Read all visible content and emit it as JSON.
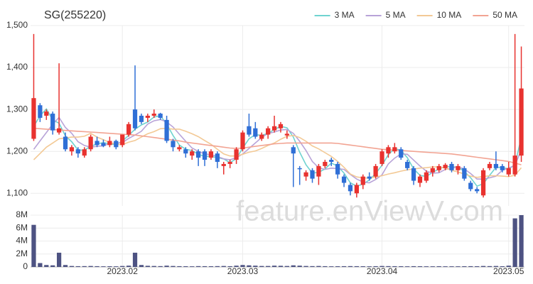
{
  "chart_data": {
    "type": "candlestick",
    "title": "SG(255220)",
    "watermark": "feature.enViewV.com",
    "categories": [
      null,
      null,
      null,
      null,
      null,
      null,
      null,
      null,
      null,
      null,
      null,
      null,
      null,
      null,
      "2023.02",
      null,
      null,
      null,
      null,
      null,
      null,
      null,
      null,
      null,
      null,
      null,
      null,
      null,
      null,
      null,
      null,
      null,
      null,
      "2023.03",
      null,
      null,
      null,
      null,
      null,
      null,
      null,
      null,
      null,
      null,
      null,
      null,
      null,
      null,
      null,
      null,
      null,
      null,
      null,
      null,
      null,
      "2023.04",
      null,
      null,
      null,
      null,
      null,
      null,
      null,
      null,
      null,
      null,
      null,
      null,
      null,
      null,
      null,
      null,
      null,
      null,
      null,
      "2023.05",
      null,
      null
    ],
    "open": [
      1230,
      1310,
      1285,
      1290,
      1245,
      1235,
      1200,
      1205,
      1190,
      1205,
      1225,
      1220,
      1215,
      1225,
      1215,
      1240,
      1300,
      1285,
      1280,
      1285,
      1290,
      1275,
      1225,
      1205,
      1205,
      1190,
      1200,
      1200,
      1185,
      1195,
      1165,
      1170,
      1180,
      1205,
      1260,
      1255,
      1230,
      1240,
      1250,
      1255,
      1238,
      1210,
      1160,
      1140,
      1155,
      1140,
      1165,
      1180,
      1170,
      1140,
      1120,
      1100,
      1120,
      1140,
      1140,
      1170,
      1195,
      1200,
      1205,
      1175,
      1160,
      1125,
      1130,
      1150,
      1155,
      1160,
      1170,
      1155,
      1160,
      1125,
      1110,
      1095,
      1160,
      1170,
      1165,
      1145,
      1145,
      1190
    ],
    "high": [
      1480,
      1315,
      1300,
      1295,
      1410,
      1245,
      1215,
      1210,
      1210,
      1240,
      1235,
      1228,
      1235,
      1228,
      1240,
      1270,
      1405,
      1290,
      1290,
      1300,
      1292,
      1285,
      1230,
      1215,
      1210,
      1205,
      1205,
      1205,
      1205,
      1200,
      1175,
      1180,
      1210,
      1250,
      1290,
      1270,
      1245,
      1260,
      1285,
      1270,
      1250,
      1215,
      1165,
      1155,
      1160,
      1170,
      1180,
      1185,
      1175,
      1145,
      1125,
      1125,
      1145,
      1150,
      1170,
      1205,
      1215,
      1220,
      1210,
      1180,
      1165,
      1145,
      1155,
      1165,
      1170,
      1172,
      1175,
      1170,
      1165,
      1130,
      1115,
      1160,
      1175,
      1200,
      1170,
      1175,
      1480,
      1450
    ],
    "low": [
      1225,
      1270,
      1275,
      1240,
      1240,
      1200,
      1190,
      1185,
      1185,
      1200,
      1210,
      1210,
      1210,
      1205,
      1210,
      1235,
      1250,
      1265,
      1270,
      1280,
      1275,
      1220,
      1200,
      1200,
      1185,
      1180,
      1165,
      1165,
      1180,
      1160,
      1145,
      1160,
      1170,
      1200,
      1235,
      1230,
      1225,
      1230,
      1245,
      1245,
      1230,
      1115,
      1120,
      1130,
      1125,
      1120,
      1160,
      1165,
      1135,
      1115,
      1095,
      1090,
      1110,
      1130,
      1135,
      1165,
      1185,
      1195,
      1180,
      1155,
      1120,
      1115,
      1125,
      1140,
      1150,
      1155,
      1150,
      1145,
      1130,
      1105,
      1100,
      1090,
      1155,
      1155,
      1150,
      1140,
      1140,
      1175
    ],
    "close": [
      1327,
      1280,
      1295,
      1250,
      1255,
      1205,
      1210,
      1195,
      1205,
      1235,
      1215,
      1213,
      1225,
      1210,
      1240,
      1265,
      1255,
      1270,
      1285,
      1290,
      1280,
      1225,
      1210,
      1210,
      1195,
      1200,
      1185,
      1180,
      1200,
      1175,
      1170,
      1175,
      1205,
      1245,
      1240,
      1235,
      1240,
      1255,
      1260,
      1265,
      1242,
      1195,
      1158,
      1150,
      1135,
      1165,
      1175,
      1175,
      1145,
      1125,
      1105,
      1120,
      1140,
      1135,
      1165,
      1200,
      1210,
      1210,
      1185,
      1160,
      1130,
      1140,
      1150,
      1160,
      1165,
      1168,
      1155,
      1165,
      1135,
      1110,
      1105,
      1155,
      1170,
      1160,
      1155,
      1160,
      1190,
      1350
    ],
    "up_color": "#e8322f",
    "down_color": "#2f6fd6",
    "ylim": [
      1070,
      1500
    ],
    "yticks": [
      {
        "value": 1100,
        "label": "1,100"
      },
      {
        "value": 1200,
        "label": "1,200"
      },
      {
        "value": 1300,
        "label": "1,300"
      },
      {
        "value": 1400,
        "label": "1,400"
      },
      {
        "value": 1500,
        "label": "1,500"
      }
    ],
    "grid": true,
    "legend": "top-right",
    "series": [
      {
        "name": "3 MA",
        "color": "#6fd3d0",
        "values": [
          1260,
          1285,
          1301,
          1275,
          1267,
          1237,
          1223,
          1203,
          1203,
          1212,
          1218,
          1221,
          1218,
          1216,
          1225,
          1238,
          1253,
          1263,
          1270,
          1282,
          1285,
          1265,
          1238,
          1215,
          1205,
          1202,
          1193,
          1188,
          1188,
          1185,
          1182,
          1173,
          1183,
          1208,
          1230,
          1240,
          1238,
          1243,
          1252,
          1260,
          1256,
          1234,
          1198,
          1168,
          1148,
          1150,
          1158,
          1172,
          1165,
          1148,
          1125,
          1117,
          1122,
          1132,
          1147,
          1167,
          1192,
          1207,
          1202,
          1185,
          1158,
          1143,
          1140,
          1150,
          1158,
          1164,
          1163,
          1163,
          1152,
          1137,
          1117,
          1123,
          1143,
          1162,
          1162,
          1158,
          1168,
          1233
        ]
      },
      {
        "name": "5 MA",
        "color": "#b8a3d8",
        "values": [
          1205,
          1225,
          1245,
          1265,
          1281,
          1257,
          1243,
          1223,
          1214,
          1210,
          1212,
          1213,
          1219,
          1220,
          1221,
          1231,
          1239,
          1248,
          1265,
          1273,
          1276,
          1270,
          1258,
          1241,
          1224,
          1208,
          1200,
          1194,
          1192,
          1188,
          1182,
          1180,
          1185,
          1194,
          1207,
          1220,
          1233,
          1243,
          1246,
          1251,
          1252,
          1243,
          1224,
          1202,
          1176,
          1161,
          1157,
          1160,
          1159,
          1157,
          1145,
          1134,
          1127,
          1125,
          1133,
          1144,
          1170,
          1184,
          1194,
          1193,
          1179,
          1165,
          1153,
          1148,
          1149,
          1157,
          1160,
          1163,
          1158,
          1147,
          1134,
          1134,
          1137,
          1141,
          1155,
          1160,
          1167,
          1203
        ]
      },
      {
        "name": "10 MA",
        "color": "#f3c995",
        "values": [
          1180,
          1195,
          1210,
          1220,
          1230,
          1232,
          1234,
          1234,
          1236,
          1243,
          1234,
          1228,
          1221,
          1217,
          1216,
          1222,
          1226,
          1234,
          1242,
          1247,
          1254,
          1255,
          1253,
          1253,
          1248,
          1242,
          1235,
          1226,
          1217,
          1205,
          1194,
          1189,
          1189,
          1193,
          1198,
          1201,
          1207,
          1214,
          1220,
          1229,
          1236,
          1238,
          1233,
          1224,
          1213,
          1206,
          1197,
          1188,
          1176,
          1162,
          1146,
          1139,
          1137,
          1136,
          1139,
          1142,
          1146,
          1149,
          1153,
          1156,
          1158,
          1160,
          1161,
          1163,
          1163,
          1160,
          1155,
          1151,
          1146,
          1141,
          1138,
          1140,
          1142,
          1142,
          1141,
          1140,
          1143,
          1161
        ]
      },
      {
        "name": "50 MA",
        "color": "#f2a493",
        "values": [
          1255,
          1254,
          1253,
          1252,
          1251,
          1250,
          1249,
          1248,
          1247,
          1246,
          1245,
          1244,
          1243,
          1242,
          1241,
          1240,
          1239,
          1237,
          1235,
          1233,
          1231,
          1229,
          1227,
          1225,
          1222,
          1220,
          1218,
          1216,
          1214,
          1212,
          1210,
          1208,
          1207,
          1208,
          1210,
          1212,
          1214,
          1216,
          1218,
          1219,
          1220,
          1220,
          1220,
          1220,
          1220,
          1220,
          1220,
          1220,
          1219,
          1217,
          1215,
          1213,
          1211,
          1209,
          1207,
          1205,
          1204,
          1203,
          1202,
          1201,
          1200,
          1199,
          1198,
          1197,
          1196,
          1195,
          1194,
          1192,
          1190,
          1188,
          1186,
          1184,
          1182,
          1180,
          1178,
          1176,
          1172,
          1168
        ]
      }
    ],
    "volume": {
      "color": "#4d5282",
      "ylim": [
        0,
        8000000
      ],
      "yticks": [
        0,
        {
          "value": 2000000,
          "label": "2M"
        },
        {
          "value": 4000000,
          "label": "4M"
        },
        {
          "value": 6000000,
          "label": "6M"
        },
        {
          "value": 8000000,
          "label": "8M"
        }
      ],
      "values": [
        6500000,
        600000,
        300000,
        250000,
        2200000,
        300000,
        150000,
        120000,
        130000,
        150000,
        120000,
        100000,
        110000,
        100000,
        150000,
        200000,
        2200000,
        300000,
        180000,
        150000,
        130000,
        200000,
        150000,
        120000,
        110000,
        100000,
        130000,
        120000,
        110000,
        130000,
        150000,
        120000,
        200000,
        300000,
        250000,
        200000,
        150000,
        150000,
        200000,
        180000,
        150000,
        250000,
        200000,
        150000,
        130000,
        150000,
        120000,
        100000,
        110000,
        120000,
        130000,
        120000,
        110000,
        100000,
        120000,
        150000,
        130000,
        120000,
        110000,
        100000,
        120000,
        110000,
        100000,
        100000,
        110000,
        100000,
        100000,
        100000,
        110000,
        120000,
        110000,
        150000,
        130000,
        150000,
        110000,
        200000,
        7500000,
        8000000
      ]
    }
  }
}
